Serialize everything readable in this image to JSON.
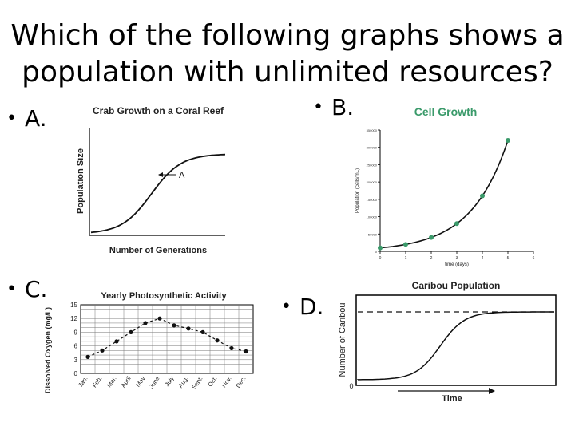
{
  "slide": {
    "title_line1": "Which of the following graphs shows a",
    "title_line2": "population with unlimited resources?"
  },
  "options": {
    "a": "A.",
    "b": "B.",
    "c": "C.",
    "d": "D."
  },
  "bullet_glyph": "•",
  "chart_data": [
    {
      "type": "line",
      "title": "Crab Growth on a Coral Reef",
      "xlabel": "Number of Generations",
      "ylabel": "Population Size",
      "annotation": "A",
      "curve": "logistic"
    },
    {
      "type": "scatter",
      "title": "Cell Growth",
      "title_color": "#3a9a6a",
      "xlabel": "time (days)",
      "ylabel": "Population (cells/mL)",
      "x_ticks": [
        "0",
        "1",
        "2",
        "3",
        "4",
        "5",
        "6"
      ],
      "y_ticks": [
        "0",
        "50000",
        "100000",
        "150000",
        "200000",
        "250000",
        "300000",
        "350000"
      ],
      "ylim": [
        0,
        350000
      ],
      "xlim": [
        0,
        6
      ],
      "points": [
        [
          0,
          10000
        ],
        [
          1,
          20000
        ],
        [
          2,
          40000
        ],
        [
          3,
          80000
        ],
        [
          4,
          160000
        ],
        [
          5,
          320000
        ]
      ]
    },
    {
      "type": "line",
      "title": "Yearly Photosynthetic Activity",
      "ylabel": "Dissolved Oxygen (mg/L)",
      "categories": [
        "Jan.",
        "Feb.",
        "Mar.",
        "April",
        "May",
        "June",
        "July",
        "Aug.",
        "Sept.",
        "Oct.",
        "Nov.",
        "Dec."
      ],
      "values": [
        3.6,
        5.0,
        7.0,
        9.0,
        11.0,
        12.0,
        10.5,
        9.8,
        9.0,
        7.2,
        5.5,
        4.8
      ],
      "y_ticks": [
        "0",
        "3",
        "6",
        "9",
        "12",
        "15"
      ],
      "ylim": [
        0,
        15
      ],
      "grid": true
    },
    {
      "type": "line",
      "title": "Caribou Population",
      "xlabel": "Time",
      "ylabel": "Number of Caribou",
      "origin_label": "0",
      "curve": "logistic",
      "carrying_capacity_line": "dashed"
    }
  ]
}
